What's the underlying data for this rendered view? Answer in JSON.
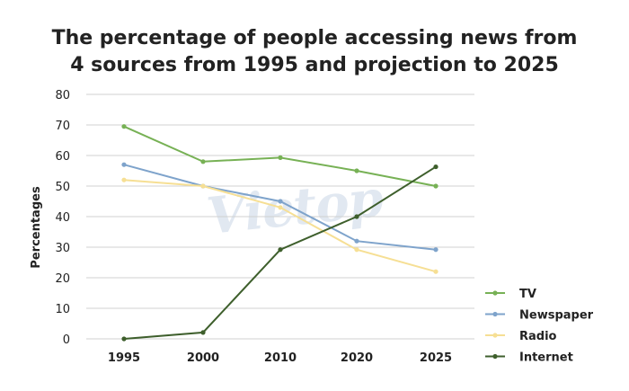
{
  "chart_data": {
    "type": "line",
    "title_lines": [
      "The percentage of people accessing news from",
      "4 sources from 1995 and projection to 2025"
    ],
    "ylabel": "Percentages",
    "xlabel": "",
    "categories": [
      "1995",
      "2000",
      "2010",
      "2020",
      "2025"
    ],
    "ylim": [
      0,
      80
    ],
    "yticks": [
      0,
      10,
      20,
      30,
      40,
      50,
      60,
      70,
      80
    ],
    "grid": true,
    "legend_position": "right",
    "series": [
      {
        "name": "TV",
        "color": "#77b155",
        "values": [
          69.5,
          58,
          59.3,
          55,
          50
        ]
      },
      {
        "name": "Newspaper",
        "color": "#7ea3cb",
        "values": [
          57,
          50,
          45,
          32,
          29.2
        ]
      },
      {
        "name": "Radio",
        "color": "#f6df94",
        "values": [
          52,
          50,
          43,
          29.2,
          22
        ]
      },
      {
        "name": "Internet",
        "color": "#3e5f2c",
        "values": [
          0,
          2.1,
          29.2,
          40,
          56.3
        ]
      }
    ]
  },
  "watermark": "Vietop"
}
